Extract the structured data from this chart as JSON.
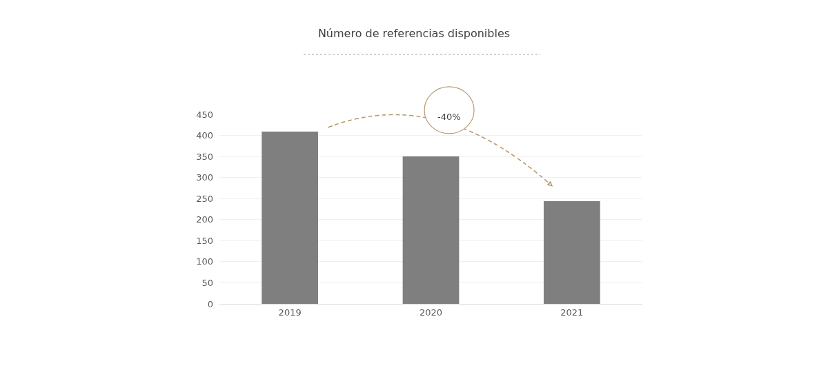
{
  "chart_data": {
    "type": "bar",
    "title": "Número de referencias disponibles",
    "categories": [
      "2019",
      "2020",
      "2021"
    ],
    "values": [
      409,
      350,
      244
    ],
    "color": "#7f7f7f",
    "ylim": [
      0,
      450
    ],
    "yticks": [
      0,
      50,
      100,
      150,
      200,
      250,
      300,
      350,
      400,
      450
    ],
    "grid": "y",
    "annotations": [
      "-40%"
    ]
  }
}
